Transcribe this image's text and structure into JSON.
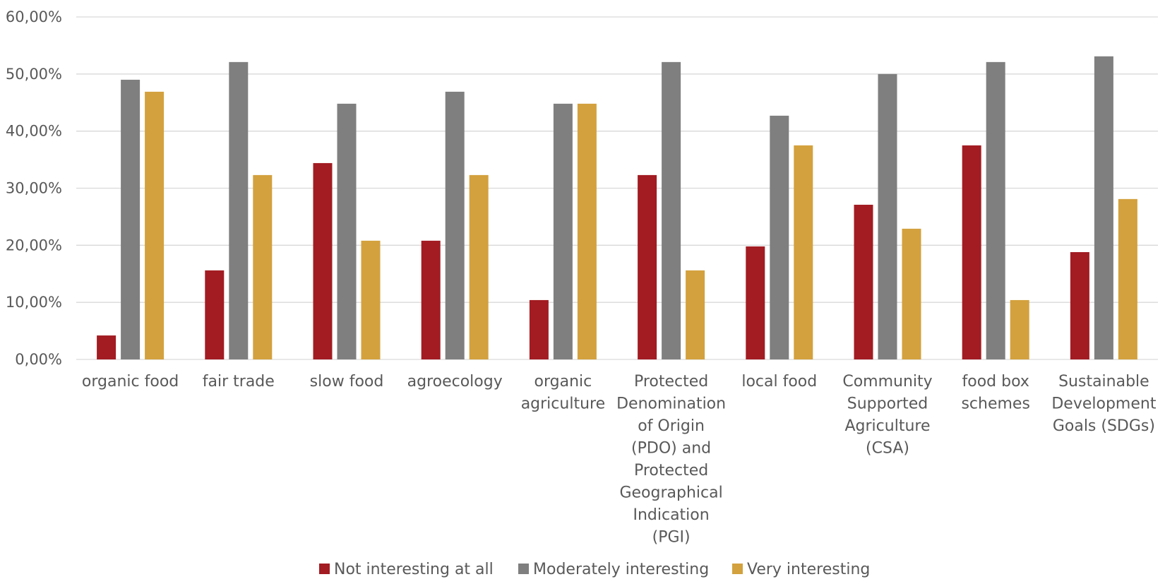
{
  "chart_data": {
    "type": "bar",
    "categories": [
      [
        "organic food"
      ],
      [
        "fair trade"
      ],
      [
        "slow food"
      ],
      [
        "agroecology"
      ],
      [
        "organic",
        "agriculture"
      ],
      [
        "Protected",
        "Denomination",
        "of Origin",
        "(PDO) and",
        "Protected",
        "Geographical",
        "Indication",
        "(PGI)"
      ],
      [
        "local food"
      ],
      [
        "Community",
        "Supported",
        "Agriculture",
        "(CSA)"
      ],
      [
        "food box",
        "schemes"
      ],
      [
        "Sustainable",
        "Development",
        "Goals (SDGs)"
      ]
    ],
    "series": [
      {
        "name": "Not interesting at all",
        "color": "#a21c22",
        "values": [
          4.2,
          15.6,
          34.4,
          20.8,
          10.4,
          32.3,
          19.8,
          27.1,
          37.5,
          18.8
        ]
      },
      {
        "name": "Moderately interesting",
        "color": "#7f7f7f",
        "values": [
          49.0,
          52.1,
          44.8,
          46.9,
          44.8,
          52.1,
          42.7,
          50.0,
          52.1,
          53.1
        ]
      },
      {
        "name": "Very interesting",
        "color": "#d3a13d",
        "values": [
          46.9,
          32.3,
          20.8,
          32.3,
          44.8,
          15.6,
          37.5,
          22.9,
          10.4,
          28.1
        ]
      }
    ],
    "ylim": [
      0,
      60
    ],
    "yticks": [
      "0,00%",
      "10,00%",
      "20,00%",
      "30,00%",
      "40,00%",
      "50,00%",
      "60,00%"
    ],
    "ytick_values": [
      0,
      10,
      20,
      30,
      40,
      50,
      60
    ],
    "grid": true,
    "legend_position": "bottom-center"
  }
}
